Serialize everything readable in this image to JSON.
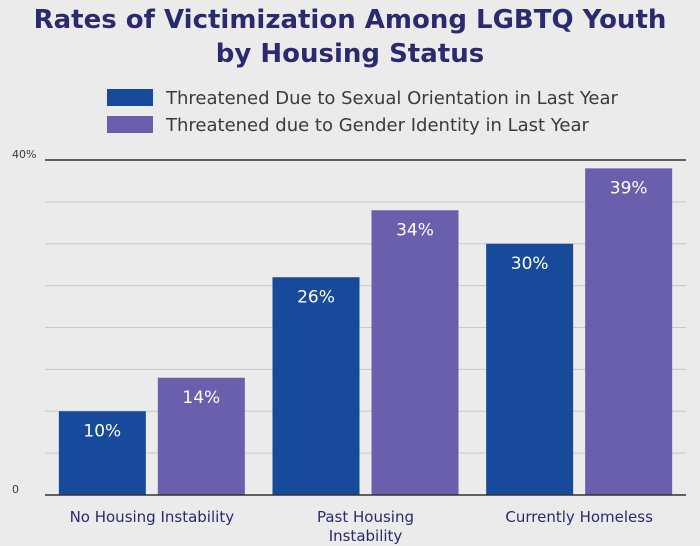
{
  "chart_data": {
    "type": "bar",
    "title_lines": [
      "Rates of Victimization Among LGBTQ Youth",
      "by Housing Status"
    ],
    "categories": [
      [
        "No Housing Instability"
      ],
      [
        "Past Housing",
        "Instability"
      ],
      [
        "Currently Homeless"
      ]
    ],
    "series": [
      {
        "name": "Threatened Due to Sexual Orientation in Last Year",
        "color": "#174a9b",
        "values": [
          10,
          26,
          30
        ],
        "labels": [
          "10%",
          "26%",
          "30%"
        ]
      },
      {
        "name": "Threatened due to Gender Identity in Last Year",
        "color": "#6a5fac",
        "values": [
          14,
          34,
          39
        ],
        "labels": [
          "14%",
          "34%",
          "39%"
        ]
      }
    ],
    "ylim": [
      0,
      40
    ],
    "yticks": [
      {
        "value": 40,
        "label": "40%"
      },
      {
        "value": 0,
        "label": "0"
      }
    ],
    "gridlines": [
      5,
      10,
      15,
      20,
      25,
      30,
      35
    ],
    "legend_position": "top",
    "xlabel": "",
    "ylabel": ""
  }
}
